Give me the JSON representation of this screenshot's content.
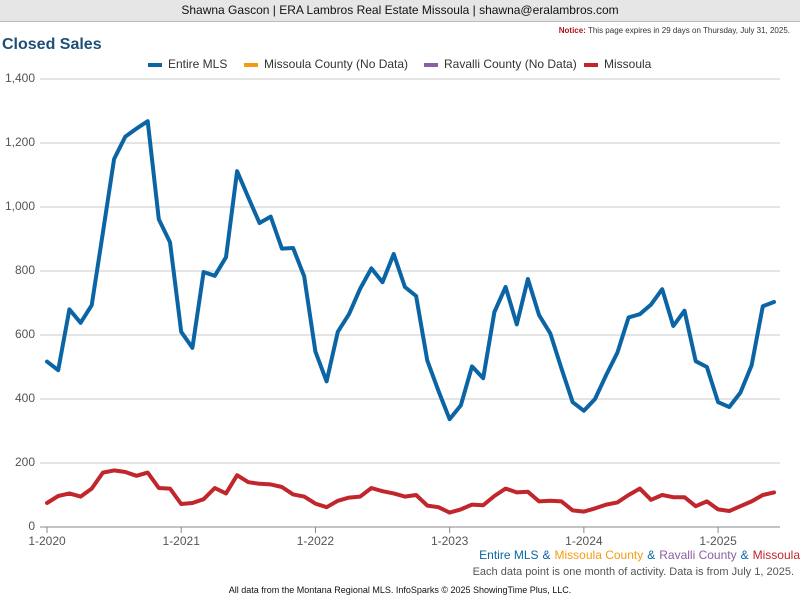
{
  "header": "Shawna Gascon | ERA Lambros Real Estate Missoula | shawna@eralambros.com",
  "notice": {
    "label": "Notice:",
    "text": "This page expires in 29 days on Thursday, July 31, 2025."
  },
  "series_note": {
    "names": [
      "Entire MLS",
      "Missoula County",
      "Ravalli County",
      "Missoula"
    ],
    "separator": "&"
  },
  "activity_note": "Each data point is one month of activity. Data is from July 1, 2025.",
  "footer": "All data from the Montana Regional MLS. InfoSparks © 2025 ShowingTime Plus, LLC.",
  "chart_data": {
    "type": "line",
    "title": "Closed Sales",
    "categories": [
      "1-2020",
      null,
      null,
      null,
      null,
      null,
      null,
      null,
      null,
      null,
      null,
      null,
      "1-2021",
      null,
      null,
      null,
      null,
      null,
      null,
      null,
      null,
      null,
      null,
      null,
      "1-2022",
      null,
      null,
      null,
      null,
      null,
      null,
      null,
      null,
      null,
      null,
      null,
      "1-2023",
      null,
      null,
      null,
      null,
      null,
      null,
      null,
      null,
      null,
      null,
      null,
      "1-2024",
      null,
      null,
      null,
      null,
      null,
      null,
      null,
      null,
      null,
      null,
      null,
      "1-2025",
      null,
      null,
      null,
      null,
      null
    ],
    "series": [
      {
        "name": "Entire MLS",
        "color": "#0b65a5",
        "values": [
          517,
          490,
          680,
          638,
          693,
          920,
          1150,
          1220,
          1245,
          1268,
          962,
          890,
          610,
          560,
          797,
          785,
          843,
          1112,
          1030,
          950,
          970,
          870,
          872,
          783,
          548,
          455,
          610,
          665,
          745,
          808,
          765,
          853,
          750,
          722,
          520,
          425,
          337,
          380,
          502,
          465,
          672,
          750,
          633,
          775,
          662,
          605,
          495,
          390,
          363,
          400,
          475,
          545,
          655,
          665,
          695,
          743,
          628,
          676,
          518,
          500,
          390,
          375,
          420,
          505,
          690,
          703
        ]
      },
      {
        "name": "Missoula County (No Data)",
        "color": "#f39c12",
        "values": [
          null,
          null,
          null,
          null,
          null,
          null,
          null,
          null,
          null,
          null,
          null,
          null,
          null,
          null,
          null,
          null,
          null,
          null,
          null,
          null,
          null,
          null,
          null,
          null,
          null,
          null,
          null,
          null,
          null,
          null,
          null,
          null,
          null,
          null,
          null,
          null,
          null,
          null,
          null,
          null,
          null,
          null,
          null,
          null,
          null,
          null,
          null,
          null,
          null,
          null,
          null,
          null,
          null,
          null,
          null,
          null,
          null,
          null,
          null,
          null,
          null,
          null,
          null,
          null,
          null,
          null
        ]
      },
      {
        "name": "Ravalli County (No Data)",
        "color": "#8e5ea2",
        "values": [
          null,
          null,
          null,
          null,
          null,
          null,
          null,
          null,
          null,
          null,
          null,
          null,
          null,
          null,
          null,
          null,
          null,
          null,
          null,
          null,
          null,
          null,
          null,
          null,
          null,
          null,
          null,
          null,
          null,
          null,
          null,
          null,
          null,
          null,
          null,
          null,
          null,
          null,
          null,
          null,
          null,
          null,
          null,
          null,
          null,
          null,
          null,
          null,
          null,
          null,
          null,
          null,
          null,
          null,
          null,
          null,
          null,
          null,
          null,
          null,
          null,
          null,
          null,
          null,
          null,
          null
        ]
      },
      {
        "name": "Missoula",
        "color": "#c0262c",
        "values": [
          75,
          97,
          105,
          95,
          120,
          170,
          177,
          172,
          160,
          170,
          122,
          120,
          72,
          75,
          87,
          122,
          105,
          162,
          140,
          135,
          133,
          125,
          102,
          95,
          73,
          62,
          82,
          92,
          95,
          122,
          112,
          105,
          95,
          100,
          67,
          62,
          45,
          55,
          70,
          68,
          97,
          120,
          108,
          110,
          80,
          82,
          80,
          52,
          48,
          58,
          70,
          77,
          100,
          120,
          85,
          100,
          93,
          93,
          65,
          80,
          55,
          50,
          65,
          80,
          100,
          108
        ]
      }
    ],
    "ylim": [
      0,
      1400
    ],
    "yticks": [
      0,
      200,
      400,
      600,
      800,
      {
        "value": 1000,
        "label": "1,000"
      },
      {
        "value": 1200,
        "label": "1,200"
      },
      {
        "value": 1400,
        "label": "1,400"
      }
    ],
    "grid": true
  }
}
